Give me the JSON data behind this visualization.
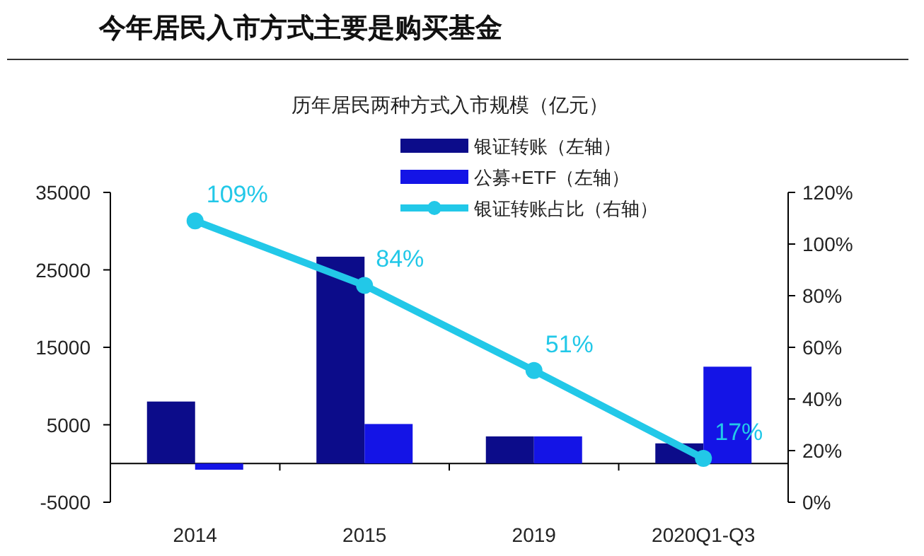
{
  "chart_data": {
    "type": "bar",
    "title": "今年居民入市方式主要是购买基金",
    "subtitle": "历年居民两种方式入市规模（亿元）",
    "categories": [
      "2014",
      "2015",
      "2019",
      "2020Q1-Q3"
    ],
    "series": [
      {
        "name": "银证转账（左轴）",
        "color": "#0c0c8a",
        "values": [
          8000,
          26700,
          3500,
          2600
        ]
      },
      {
        "name": "公募+ETF（左轴）",
        "color": "#1414e6",
        "values": [
          -800,
          5100,
          3500,
          12500
        ]
      },
      {
        "name": "银证转账占比（右轴）",
        "color": "#22c8e8",
        "type": "line",
        "axis": "y2",
        "marker": "circle",
        "values": [
          109,
          84,
          51,
          17
        ],
        "value_labels": [
          "109%",
          "84%",
          "51%",
          "17%"
        ]
      }
    ],
    "ylim": [
      -5000,
      35000
    ],
    "yticks": [
      -5000,
      5000,
      15000,
      25000,
      35000
    ],
    "y2lim": [
      0,
      120
    ],
    "y2ticks": [
      {
        "value": 0,
        "label": "0%"
      },
      {
        "value": 20,
        "label": "20%"
      },
      {
        "value": 40,
        "label": "40%"
      },
      {
        "value": 60,
        "label": "60%"
      },
      {
        "value": 80,
        "label": "80%"
      },
      {
        "value": 100,
        "label": "100%"
      },
      {
        "value": 120,
        "label": "120%"
      }
    ],
    "legend": "top",
    "grid": false
  }
}
